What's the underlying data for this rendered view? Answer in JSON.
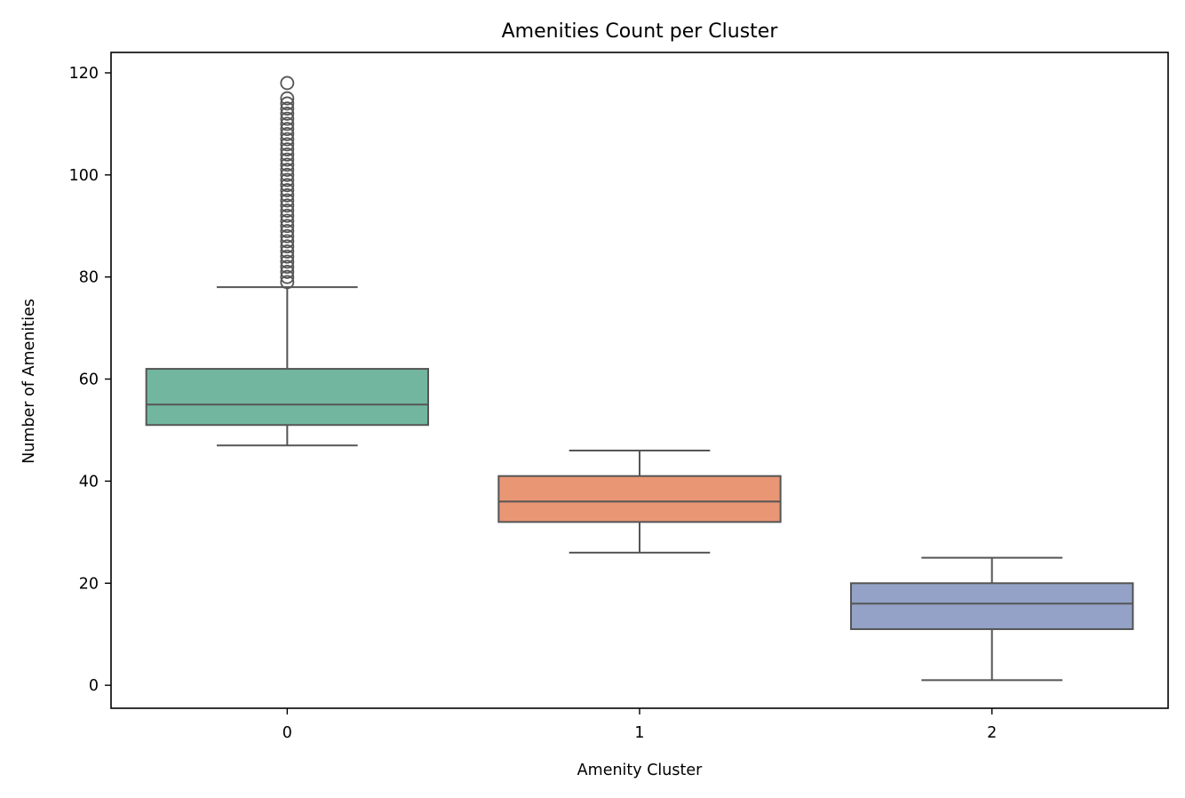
{
  "chart_data": {
    "type": "box",
    "title": "Amenities Count per Cluster",
    "xlabel": "Amenity Cluster",
    "ylabel": "Number of Amenities",
    "ylim": [
      -4.5,
      124
    ],
    "yticks": [
      0,
      20,
      40,
      60,
      80,
      100,
      120
    ],
    "categories": [
      "0",
      "1",
      "2"
    ],
    "grid": false,
    "legend": "none",
    "boxes": [
      {
        "category": "0",
        "whisker_low": 47,
        "q1": 51,
        "median": 55,
        "q3": 62,
        "whisker_high": 78,
        "color": "#72b6a0",
        "outliers": [
          79,
          80,
          81,
          82,
          83,
          84,
          85,
          86,
          87,
          88,
          89,
          90,
          91,
          92,
          93,
          94,
          95,
          96,
          97,
          98,
          99,
          100,
          101,
          102,
          103,
          104,
          105,
          106,
          107,
          108,
          109,
          110,
          111,
          112,
          113,
          114,
          115,
          118
        ]
      },
      {
        "category": "1",
        "whisker_low": 26,
        "q1": 32,
        "median": 36,
        "q3": 41,
        "whisker_high": 46,
        "color": "#e99675",
        "outliers": []
      },
      {
        "category": "2",
        "whisker_low": 1,
        "q1": 11,
        "median": 16,
        "q3": 20,
        "whisker_high": 25,
        "color": "#93a2c6",
        "outliers": []
      }
    ]
  }
}
